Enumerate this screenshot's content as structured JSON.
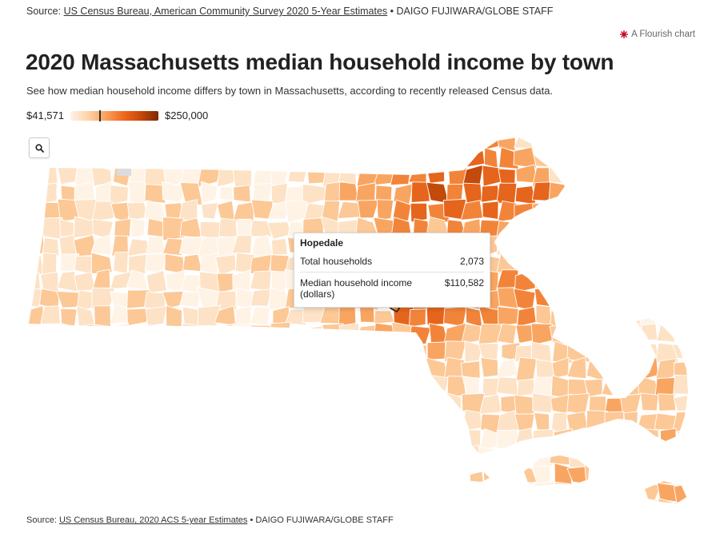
{
  "header": {
    "source_prefix": "Source:",
    "source_link": "US Census Bureau, American Community Survey 2020 5-Year Estimates",
    "source_suffix": "• DAIGO FUJIWARA/GLOBE STAFF",
    "flourish_label": "A Flourish chart"
  },
  "title": "2020 Massachusetts median household income by town",
  "subtitle": "See how median household income differs by town in Massachusetts, according to recently released Census data.",
  "legend": {
    "min_label": "$41,571",
    "max_label": "$250,000",
    "min_value": 41571,
    "max_value": 250000,
    "marker_value": 110582
  },
  "zoom_icon": "magnifier-icon",
  "tooltip": {
    "town": "Hopedale",
    "rows": [
      {
        "label": "Total households",
        "value": "2,073"
      },
      {
        "label": "Median household income (dollars)",
        "value": "$110,582"
      }
    ]
  },
  "footer": {
    "source_prefix": "Source:",
    "source_link": "US Census Bureau, 2020 ACS 5-year Estimates",
    "source_suffix": "• DAIGO FUJIWARA/GLOBE STAFF"
  },
  "colors": {
    "scale": [
      "#fff3e6",
      "#fde2c6",
      "#fcc896",
      "#f9a562",
      "#f2843a",
      "#e5651c",
      "#c24a0b",
      "#7d2a04"
    ],
    "border": "#ffffff",
    "no_data": "#dcdcdc",
    "highlight_stroke": "#222222"
  }
}
